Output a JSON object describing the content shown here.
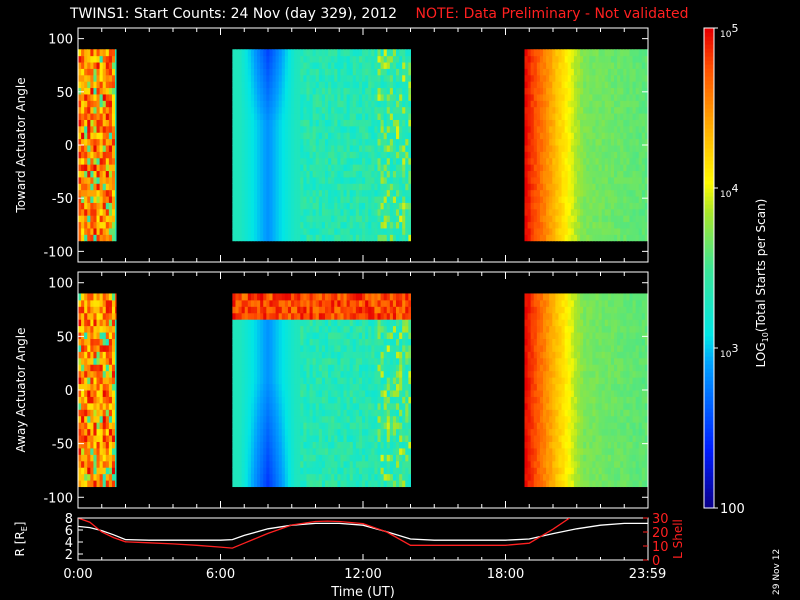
{
  "title": "TWINS1: Start Counts: 24 Nov (day 329), 2012",
  "note": "NOTE: Data Preliminary - Not validated",
  "date_stamp": "29 Nov 12",
  "chart_data": [
    {
      "type": "heatmap",
      "ylabel": "Toward Actuator Angle",
      "ylim": [
        -110,
        110
      ],
      "yticks": [
        "100",
        "50",
        "0",
        "-50",
        "-100"
      ],
      "ytick_values": [
        100,
        50,
        0,
        -50,
        -100
      ],
      "data_range_deg": [
        -90,
        90
      ],
      "data_segments_hours": [
        [
          0,
          1.6
        ],
        [
          6.5,
          14.0
        ],
        [
          18.8,
          24.0
        ]
      ],
      "colormap": "rainbow (blue = 100, cyan = 10^3, yellow = 10^4, red = 10^5)",
      "description_levels_log10": {
        "segment1": "mixed 3.8-5.0 (orange/red noisy)",
        "segment2": "3.0-3.6 (cyan/green, darker near 7-8 UT, stripes 11-14 UT)",
        "segment3": "4.5-5.0 at 19 UT fading to 3.6 by 24 UT"
      }
    },
    {
      "type": "heatmap",
      "ylabel": "Away Actuator Angle",
      "ylim": [
        -110,
        110
      ],
      "yticks": [
        "100",
        "50",
        "0",
        "-50",
        "-100"
      ],
      "ytick_values": [
        100,
        50,
        0,
        -50,
        -100
      ],
      "data_range_deg": [
        -90,
        90
      ],
      "data_segments_hours": [
        [
          0,
          1.6
        ],
        [
          6.5,
          14.0
        ],
        [
          18.8,
          24.0
        ]
      ],
      "colormap": "rainbow",
      "description_levels_log10": {
        "segment1": "mixed 3.8-5.0",
        "segment2": "red band above +65 deg, 2.8-3.4 below (blue near 7-8 UT)",
        "segment3": "4.6-5.0 at 19 UT fading to 3.7 by 24 UT"
      }
    },
    {
      "type": "line",
      "ylabel_left": "R [R_E]",
      "ylabel_left_display": "R [R",
      "ylabel_left_sub": "E",
      "ylabel_right": "L Shell",
      "ylim_left": [
        1,
        8
      ],
      "ylim_right": [
        0,
        30
      ],
      "yticks_left": [
        "8",
        "6",
        "4",
        "2"
      ],
      "ytick_left_values": [
        8,
        6,
        4,
        2
      ],
      "yticks_right": [
        "30",
        "20",
        "10",
        "0"
      ],
      "ytick_right_values": [
        30,
        20,
        10,
        0
      ],
      "xlabel": "Time (UT)",
      "xticks": [
        "0:00",
        "6:00",
        "12:00",
        "18:00",
        "23:59"
      ],
      "xtick_hours": [
        0,
        6,
        12,
        18,
        23.98
      ],
      "series": [
        {
          "axis": "left",
          "color": "#ffffff",
          "x": [
            0,
            0.5,
            1,
            1.5,
            2,
            3,
            4,
            5,
            6,
            6.5,
            7,
            8,
            9,
            10,
            10.5,
            11,
            12,
            13,
            14,
            15,
            16,
            17,
            18,
            19,
            20,
            21,
            22,
            23,
            24
          ],
          "y": [
            6.6,
            6.4,
            5.9,
            5.2,
            4.4,
            4.3,
            4.3,
            4.3,
            4.3,
            4.4,
            5.1,
            6.2,
            6.8,
            7.1,
            7.1,
            7.1,
            6.8,
            5.7,
            4.5,
            4.3,
            4.3,
            4.3,
            4.3,
            4.5,
            5.4,
            6.2,
            6.8,
            7.1,
            7.1
          ]
        },
        {
          "axis": "right",
          "color": "#ff2020",
          "x": [
            0,
            0.5,
            1,
            1.5,
            2,
            3,
            4,
            5,
            6,
            6.5,
            7,
            8,
            9,
            10,
            10.5,
            11,
            12,
            13,
            14,
            15,
            16,
            17,
            18,
            19,
            20,
            20.7
          ],
          "y": [
            30,
            27,
            20,
            16,
            13,
            12.3,
            11.5,
            10.5,
            9.2,
            8.5,
            12,
            19,
            25,
            27.5,
            27.8,
            27.5,
            26,
            20,
            10.5,
            10.5,
            10.5,
            10.5,
            10.5,
            12,
            22,
            30
          ]
        }
      ]
    }
  ],
  "colorbar": {
    "label": "LOG",
    "label_sub": "10",
    "label_rest": "(Total Starts per Scan)",
    "ticks": [
      {
        "value": 100000,
        "label": "10",
        "sup": "5"
      },
      {
        "value": 10000,
        "label": "10",
        "sup": "4"
      },
      {
        "value": 1000,
        "label": "10",
        "sup": "3"
      },
      {
        "value": 100,
        "label": "100",
        "sup": ""
      }
    ],
    "range_log10": [
      2,
      5
    ]
  }
}
